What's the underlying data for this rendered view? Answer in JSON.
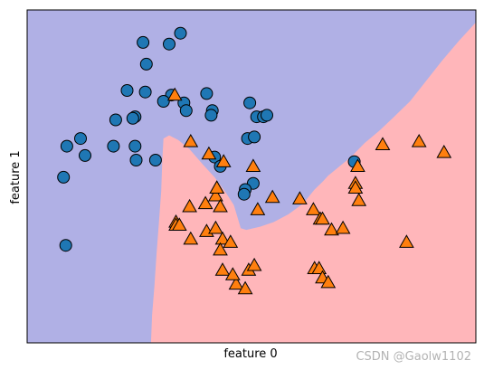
{
  "chart_data": {
    "type": "scatter",
    "title": "",
    "xlabel": "feature 0",
    "ylabel": "feature 1",
    "xlim": [
      -1.55,
      2.4
    ],
    "ylim": [
      -0.8,
      1.35
    ],
    "show_ticks": false,
    "grid": false,
    "colors": {
      "region_class0": "#b0b0e5",
      "region_class1": "#ffb6ba",
      "class0": "#1f77b4",
      "class1": "#ff7f0e",
      "edge": "#000000"
    },
    "decision_boundary": [
      [
        -0.46,
        -0.8
      ],
      [
        -0.45,
        -0.62
      ],
      [
        -0.43,
        -0.44
      ],
      [
        -0.41,
        -0.22
      ],
      [
        -0.39,
        -0.02
      ],
      [
        -0.37,
        0.18
      ],
      [
        -0.36,
        0.38
      ],
      [
        -0.35,
        0.52
      ],
      [
        -0.3,
        0.54
      ],
      [
        -0.22,
        0.51
      ],
      [
        -0.12,
        0.45
      ],
      [
        0.0,
        0.35
      ],
      [
        0.1,
        0.27
      ],
      [
        0.2,
        0.17
      ],
      [
        0.27,
        0.09
      ],
      [
        0.31,
        -0.01
      ],
      [
        0.33,
        -0.06
      ],
      [
        0.38,
        -0.07
      ],
      [
        0.5,
        -0.05
      ],
      [
        0.62,
        -0.02
      ],
      [
        0.75,
        0.03
      ],
      [
        0.88,
        0.1
      ],
      [
        0.98,
        0.19
      ],
      [
        1.05,
        0.24
      ],
      [
        1.1,
        0.28
      ],
      [
        1.2,
        0.34
      ],
      [
        1.3,
        0.4
      ],
      [
        1.42,
        0.49
      ],
      [
        1.55,
        0.57
      ],
      [
        1.68,
        0.66
      ],
      [
        1.82,
        0.76
      ],
      [
        1.95,
        0.88
      ],
      [
        2.1,
        1.02
      ],
      [
        2.25,
        1.15
      ],
      [
        2.4,
        1.27
      ]
    ],
    "series": [
      {
        "class": 0,
        "marker": "circle",
        "points": [
          [
            -0.53,
            1.14
          ],
          [
            -0.3,
            1.13
          ],
          [
            -0.2,
            1.2
          ],
          [
            -0.5,
            1.0
          ],
          [
            -0.67,
            0.83
          ],
          [
            -0.51,
            0.82
          ],
          [
            -0.28,
            0.8
          ],
          [
            -0.17,
            0.75
          ],
          [
            -0.15,
            0.7
          ],
          [
            -0.35,
            0.76
          ],
          [
            -0.6,
            0.66
          ],
          [
            -0.62,
            0.65
          ],
          [
            -0.77,
            0.64
          ],
          [
            0.03,
            0.81
          ],
          [
            0.08,
            0.7
          ],
          [
            0.07,
            0.67
          ],
          [
            0.41,
            0.75
          ],
          [
            0.47,
            0.66
          ],
          [
            0.39,
            0.52
          ],
          [
            -1.08,
            0.52
          ],
          [
            -1.2,
            0.47
          ],
          [
            -0.79,
            0.47
          ],
          [
            -0.6,
            0.47
          ],
          [
            -1.04,
            0.41
          ],
          [
            -1.23,
            0.27
          ],
          [
            -0.59,
            0.38
          ],
          [
            -0.42,
            0.38
          ],
          [
            0.1,
            0.4
          ],
          [
            0.15,
            0.34
          ],
          [
            0.44,
            0.23
          ],
          [
            0.37,
            0.19
          ],
          [
            0.36,
            0.16
          ],
          [
            1.33,
            0.37
          ],
          [
            -1.21,
            -0.17
          ],
          [
            0.45,
            0.53
          ],
          [
            0.53,
            0.66
          ],
          [
            0.56,
            0.67
          ]
        ]
      },
      {
        "class": 1,
        "marker": "triangle",
        "points": [
          [
            -0.25,
            0.8
          ],
          [
            -0.11,
            0.5
          ],
          [
            0.05,
            0.42
          ],
          [
            0.18,
            0.37
          ],
          [
            0.44,
            0.34
          ],
          [
            -0.12,
            0.08
          ],
          [
            0.02,
            0.1
          ],
          [
            -0.24,
            -0.02
          ],
          [
            -0.24,
            -0.04
          ],
          [
            -0.21,
            -0.04
          ],
          [
            0.03,
            -0.08
          ],
          [
            0.12,
            0.2
          ],
          [
            0.11,
            0.15
          ],
          [
            0.12,
            0.2
          ],
          [
            0.15,
            0.08
          ],
          [
            0.11,
            -0.06
          ],
          [
            0.17,
            -0.13
          ],
          [
            0.24,
            -0.15
          ],
          [
            0.48,
            0.06
          ],
          [
            0.61,
            0.14
          ],
          [
            0.85,
            0.13
          ],
          [
            0.97,
            0.06
          ],
          [
            1.03,
            0.0
          ],
          [
            1.05,
            0.0
          ],
          [
            1.13,
            -0.07
          ],
          [
            1.23,
            -0.06
          ],
          [
            1.36,
            0.34
          ],
          [
            1.34,
            0.23
          ],
          [
            1.34,
            0.2
          ],
          [
            1.37,
            0.12
          ],
          [
            1.58,
            0.48
          ],
          [
            1.9,
            0.5
          ],
          [
            2.12,
            0.43
          ],
          [
            1.79,
            -0.15
          ],
          [
            -0.11,
            -0.13
          ],
          [
            0.15,
            -0.2
          ],
          [
            0.17,
            -0.33
          ],
          [
            0.29,
            -0.42
          ],
          [
            0.37,
            -0.45
          ],
          [
            0.4,
            -0.33
          ],
          [
            0.45,
            -0.3
          ],
          [
            0.26,
            -0.36
          ],
          [
            0.98,
            -0.32
          ],
          [
            1.02,
            -0.32
          ],
          [
            1.05,
            -0.38
          ],
          [
            1.1,
            -0.41
          ]
        ]
      }
    ]
  }
}
